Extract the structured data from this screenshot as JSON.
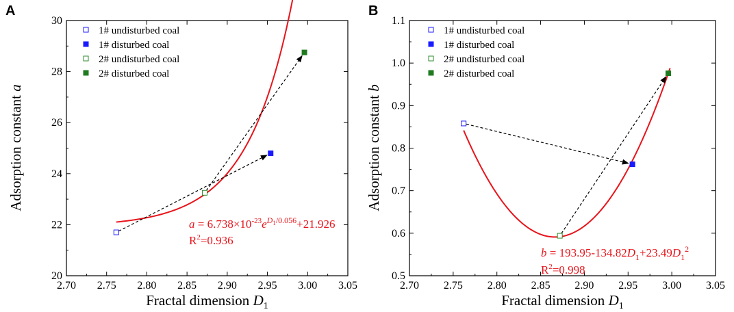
{
  "chart_data": [
    {
      "panel_label": "A",
      "type": "scatter",
      "xlabel": "Fractal dimension",
      "xlabel_var": "D",
      "xlabel_sub": "1",
      "ylabel": "Adsorption constant",
      "ylabel_var": "a",
      "xlim": [
        2.7,
        3.05
      ],
      "ylim": [
        20,
        30
      ],
      "xticks": [
        2.7,
        2.75,
        2.8,
        2.85,
        2.9,
        2.95,
        3.0,
        3.05
      ],
      "xtick_labels": [
        "2.70",
        "2.75",
        "2.80",
        "2.85",
        "2.90",
        "2.95",
        "3.00",
        "3.05"
      ],
      "yticks": [
        20,
        22,
        24,
        26,
        28,
        30
      ],
      "ytick_labels": [
        "20",
        "22",
        "24",
        "26",
        "28",
        "30"
      ],
      "legend_position": "top-left",
      "series": [
        {
          "name": "1# undisturbed coal",
          "marker": "open-square",
          "color": "#1a1aff",
          "x": 2.762,
          "y": 21.7
        },
        {
          "name": "1# disturbed coal",
          "marker": "filled-square",
          "color": "#1a1aff",
          "x": 2.954,
          "y": 24.8
        },
        {
          "name": "2# undisturbed coal",
          "marker": "open-square",
          "color": "#2e8b2e",
          "x": 2.872,
          "y": 23.25
        },
        {
          "name": "2# disturbed coal",
          "marker": "filled-square",
          "color": "#1f7a1f",
          "x": 2.996,
          "y": 28.75
        }
      ],
      "arrows": [
        {
          "from": [
            2.762,
            21.7
          ],
          "to": [
            2.954,
            24.8
          ]
        },
        {
          "from": [
            2.872,
            23.25
          ],
          "to": [
            2.996,
            28.75
          ]
        }
      ],
      "fit": {
        "type": "exponential",
        "coef": 6.738e-23,
        "scale": 0.056,
        "offset": 21.926,
        "x_range": [
          2.762,
          2.998
        ],
        "color": "#e8141b",
        "equation_parts": [
          "a",
          " = 6.738×10",
          "-23",
          "e",
          "D",
          "1",
          "/0.056",
          "+21.926"
        ],
        "r2_text": "=0.936"
      }
    },
    {
      "panel_label": "B",
      "type": "scatter",
      "xlabel": "Fractal dimension",
      "xlabel_var": "D",
      "xlabel_sub": "1",
      "ylabel": "Adsorption constant",
      "ylabel_var": "b",
      "xlim": [
        2.7,
        3.05
      ],
      "ylim": [
        0.5,
        1.1
      ],
      "xticks": [
        2.7,
        2.75,
        2.8,
        2.85,
        2.9,
        2.95,
        3.0,
        3.05
      ],
      "xtick_labels": [
        "2.70",
        "2.75",
        "2.80",
        "2.85",
        "2.90",
        "2.95",
        "3.00",
        "3.05"
      ],
      "yticks": [
        0.5,
        0.6,
        0.7,
        0.8,
        0.9,
        1.0,
        1.1
      ],
      "ytick_labels": [
        "0.5",
        "0.6",
        "0.7",
        "0.8",
        "0.9",
        "1.0",
        "1.1"
      ],
      "legend_position": "top-left",
      "series": [
        {
          "name": "1# undisturbed coal",
          "marker": "open-square",
          "color": "#1a1aff",
          "x": 2.762,
          "y": 0.858
        },
        {
          "name": "1# disturbed coal",
          "marker": "filled-square",
          "color": "#1a1aff",
          "x": 2.955,
          "y": 0.762
        },
        {
          "name": "2# undisturbed coal",
          "marker": "open-square",
          "color": "#2e8b2e",
          "x": 2.872,
          "y": 0.594
        },
        {
          "name": "2# disturbed coal",
          "marker": "filled-square",
          "color": "#1f7a1f",
          "x": 2.996,
          "y": 0.976
        }
      ],
      "arrows": [
        {
          "from": [
            2.762,
            0.858
          ],
          "to": [
            2.955,
            0.762
          ]
        },
        {
          "from": [
            2.872,
            0.594
          ],
          "to": [
            2.996,
            0.976
          ]
        }
      ],
      "fit": {
        "type": "quadratic",
        "x_range": [
          2.762,
          2.998
        ],
        "vertex_x": 2.8665,
        "vertex_y": 0.591,
        "end_x": 2.996,
        "end_y": 0.976,
        "color": "#e8141b",
        "equation_parts": [
          "b",
          " = 193.95-134.82",
          "D",
          "1",
          "+23.49",
          "D",
          "1",
          "2"
        ],
        "r2_text": "=0.998"
      }
    }
  ],
  "colors": {
    "blue": "#1a1aff",
    "green_open": "#2e8b2e",
    "green_filled": "#1f7a1f",
    "fit": "#e8141b",
    "axis": "#000000",
    "arrow": "#000000"
  }
}
